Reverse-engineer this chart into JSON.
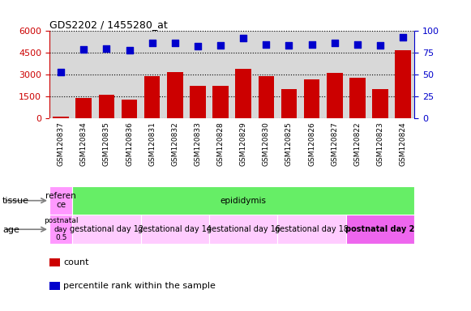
{
  "title": "GDS2202 / 1455280_at",
  "samples": [
    "GSM120837",
    "GSM120834",
    "GSM120835",
    "GSM120836",
    "GSM120831",
    "GSM120832",
    "GSM120833",
    "GSM120828",
    "GSM120829",
    "GSM120830",
    "GSM120825",
    "GSM120826",
    "GSM120827",
    "GSM120822",
    "GSM120823",
    "GSM120824"
  ],
  "counts": [
    80,
    1400,
    1600,
    1300,
    2900,
    3200,
    2200,
    2200,
    3400,
    2900,
    2000,
    2700,
    3100,
    2800,
    2000,
    4700
  ],
  "percentiles": [
    53,
    79,
    80,
    78,
    86,
    86,
    83,
    84,
    92,
    85,
    84,
    85,
    86,
    85,
    84,
    93
  ],
  "ylim_left": [
    0,
    6000
  ],
  "ylim_right": [
    0,
    100
  ],
  "yticks_left": [
    0,
    1500,
    3000,
    4500,
    6000
  ],
  "yticks_right": [
    0,
    25,
    50,
    75,
    100
  ],
  "bar_color": "#cc0000",
  "dot_color": "#0000cc",
  "tissue_label": "tissue",
  "age_label": "age",
  "tissue_groups": [
    {
      "label": "referen\nce",
      "color": "#ff99ff",
      "span": [
        0,
        1
      ]
    },
    {
      "label": "epididymis",
      "color": "#66ee66",
      "span": [
        1,
        16
      ]
    }
  ],
  "age_groups": [
    {
      "label": "postnatal\nday\n0.5",
      "color": "#ff99ff",
      "span": [
        0,
        1
      ]
    },
    {
      "label": "gestational day 12",
      "color": "#ffccff",
      "span": [
        1,
        4
      ]
    },
    {
      "label": "gestational day 14",
      "color": "#ffccff",
      "span": [
        4,
        7
      ]
    },
    {
      "label": "gestational day 16",
      "color": "#ffccff",
      "span": [
        7,
        10
      ]
    },
    {
      "label": "gestational day 18",
      "color": "#ffccff",
      "span": [
        10,
        13
      ]
    },
    {
      "label": "postnatal day 2",
      "color": "#ee66ee",
      "span": [
        13,
        16
      ]
    }
  ],
  "legend_items": [
    {
      "label": "count",
      "color": "#cc0000"
    },
    {
      "label": "percentile rank within the sample",
      "color": "#0000cc"
    }
  ],
  "background_color": "#ffffff",
  "tick_color_left": "#cc0000",
  "tick_color_right": "#0000cc",
  "axis_bg": "#d8d8d8"
}
